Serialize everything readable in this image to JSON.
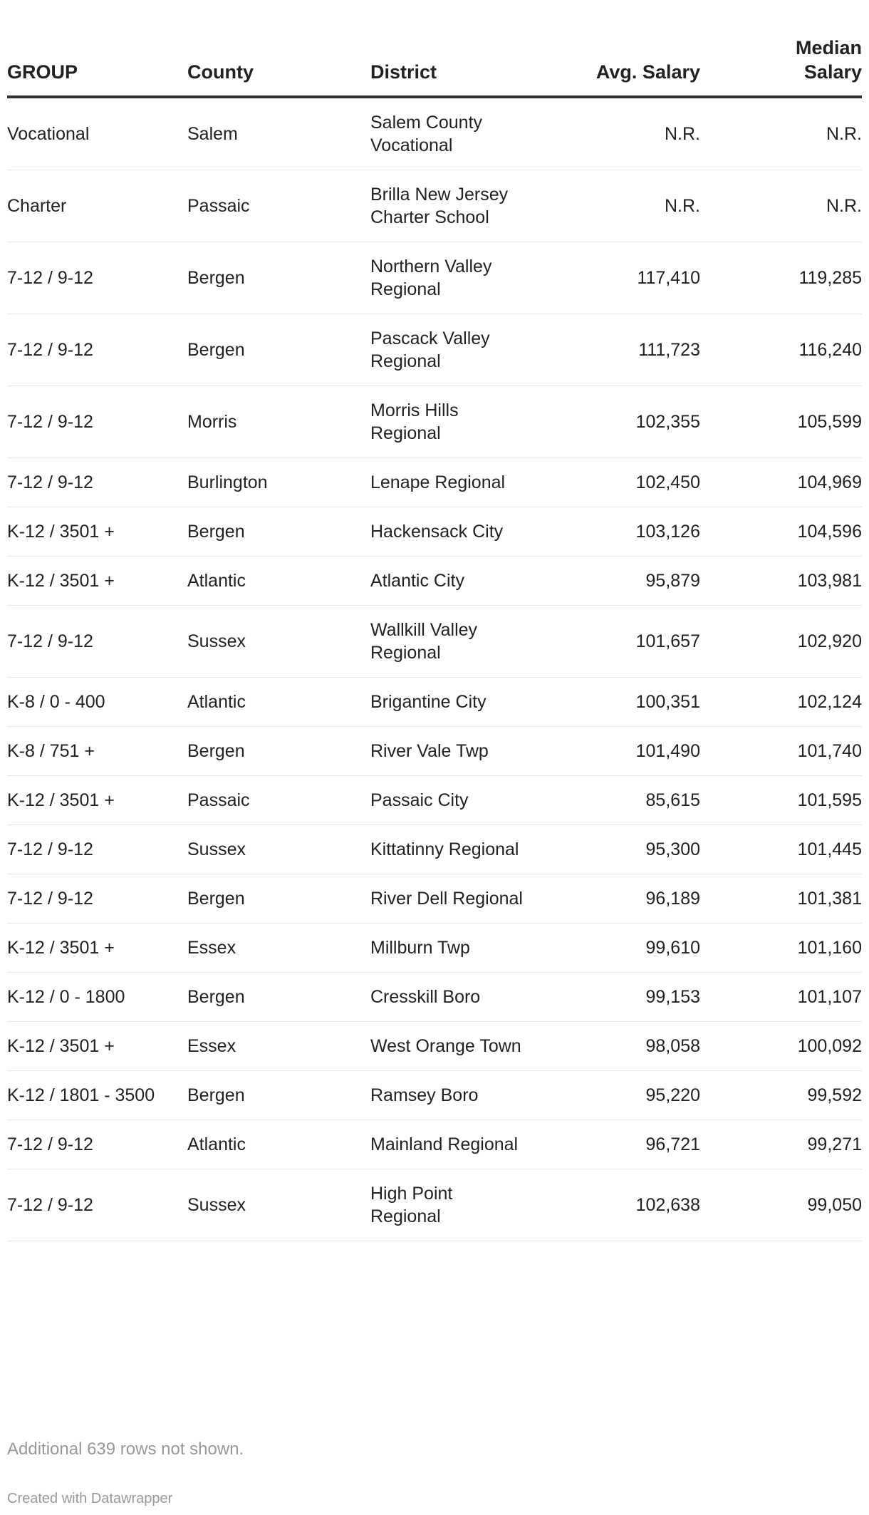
{
  "table": {
    "headers": [
      "GROUP",
      "County",
      "District",
      "Avg. Salary",
      "Median Salary"
    ],
    "rows": [
      [
        "Vocational",
        "Salem",
        "Salem County Vocational",
        "N.R.",
        "N.R."
      ],
      [
        "Charter",
        "Passaic",
        "Brilla New Jersey Charter School",
        "N.R.",
        "N.R."
      ],
      [
        "7-12 / 9-12",
        "Bergen",
        "Northern Valley Regional",
        "117,410",
        "119,285"
      ],
      [
        "7-12 / 9-12",
        "Bergen",
        "Pascack Valley Regional",
        "111,723",
        "116,240"
      ],
      [
        "7-12 / 9-12",
        "Morris",
        "Morris Hills Regional",
        "102,355",
        "105,599"
      ],
      [
        "7-12 / 9-12",
        "Burlington",
        "Lenape Regional",
        "102,450",
        "104,969"
      ],
      [
        "K-12 / 3501 +",
        "Bergen",
        "Hackensack City",
        "103,126",
        "104,596"
      ],
      [
        "K-12 / 3501 +",
        "Atlantic",
        "Atlantic City",
        "95,879",
        "103,981"
      ],
      [
        "7-12 / 9-12",
        "Sussex",
        "Wallkill Valley Regional",
        "101,657",
        "102,920"
      ],
      [
        "K-8 / 0 - 400",
        "Atlantic",
        "Brigantine City",
        "100,351",
        "102,124"
      ],
      [
        "K-8 / 751 +",
        "Bergen",
        "River Vale Twp",
        "101,490",
        "101,740"
      ],
      [
        "K-12 / 3501 +",
        "Passaic",
        "Passaic City",
        "85,615",
        "101,595"
      ],
      [
        "7-12 / 9-12",
        "Sussex",
        "Kittatinny Regional",
        "95,300",
        "101,445"
      ],
      [
        "7-12 / 9-12",
        "Bergen",
        "River Dell Regional",
        "96,189",
        "101,381"
      ],
      [
        "K-12 / 3501 +",
        "Essex",
        "Millburn Twp",
        "99,610",
        "101,160"
      ],
      [
        "K-12 / 0 - 1800",
        "Bergen",
        "Cresskill Boro",
        "99,153",
        "101,107"
      ],
      [
        "K-12 / 3501 +",
        "Essex",
        "West Orange Town",
        "98,058",
        "100,092"
      ],
      [
        "K-12 / 1801 - 3500",
        "Bergen",
        "Ramsey Boro",
        "95,220",
        "99,592"
      ],
      [
        "7-12 / 9-12",
        "Atlantic",
        "Mainland Regional",
        "96,721",
        "99,271"
      ],
      [
        "7-12 / 9-12",
        "Sussex",
        "High Point Regional",
        "102,638",
        "99,050"
      ]
    ]
  },
  "footer": {
    "notes": "Additional 639 rows not shown.",
    "credit": "Created with Datawrapper"
  }
}
